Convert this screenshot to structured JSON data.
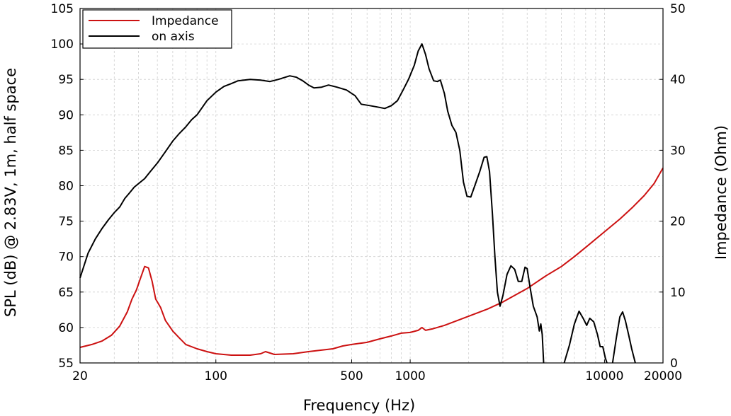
{
  "chart_data": {
    "type": "line",
    "xlabel": "Frequency (Hz)",
    "ylabel_left": "SPL (dB) @ 2.83V, 1m, half space",
    "ylabel_right": "Impedance (Ohm)",
    "x_scale": "log",
    "xlim": [
      20,
      20000
    ],
    "ylim_left": [
      55,
      105
    ],
    "ylim_right": [
      0,
      50
    ],
    "grid": true,
    "legend_position": "top-left",
    "x_ticks": [
      {
        "value": 20,
        "label": "20"
      },
      {
        "value": 100,
        "label": "100"
      },
      {
        "value": 500,
        "label": "500"
      },
      {
        "value": 1000,
        "label": "1000"
      },
      {
        "value": 10000,
        "label": "10000"
      },
      {
        "value": 20000,
        "label": "20000"
      }
    ],
    "y_ticks_left": [
      55,
      60,
      65,
      70,
      75,
      80,
      85,
      90,
      95,
      100,
      105
    ],
    "y_ticks_right": [
      0,
      10,
      20,
      30,
      40,
      50
    ],
    "series": [
      {
        "name": "Impedance",
        "axis": "right",
        "color": "#cc1111",
        "points": [
          [
            20,
            2.2
          ],
          [
            23,
            2.6
          ],
          [
            26,
            3.1
          ],
          [
            29,
            3.9
          ],
          [
            32,
            5.2
          ],
          [
            35,
            7.2
          ],
          [
            37,
            9.0
          ],
          [
            39,
            10.3
          ],
          [
            41,
            12.0
          ],
          [
            43,
            13.6
          ],
          [
            45,
            13.4
          ],
          [
            47,
            11.5
          ],
          [
            49,
            9.0
          ],
          [
            52,
            7.8
          ],
          [
            55,
            6.0
          ],
          [
            60,
            4.5
          ],
          [
            65,
            3.5
          ],
          [
            70,
            2.6
          ],
          [
            80,
            2.0
          ],
          [
            90,
            1.6
          ],
          [
            100,
            1.3
          ],
          [
            120,
            1.1
          ],
          [
            150,
            1.1
          ],
          [
            170,
            1.3
          ],
          [
            180,
            1.6
          ],
          [
            190,
            1.4
          ],
          [
            200,
            1.2
          ],
          [
            250,
            1.3
          ],
          [
            300,
            1.6
          ],
          [
            400,
            2.0
          ],
          [
            450,
            2.4
          ],
          [
            500,
            2.6
          ],
          [
            600,
            2.9
          ],
          [
            700,
            3.4
          ],
          [
            800,
            3.8
          ],
          [
            900,
            4.2
          ],
          [
            1000,
            4.3
          ],
          [
            1100,
            4.6
          ],
          [
            1150,
            5.0
          ],
          [
            1200,
            4.6
          ],
          [
            1300,
            4.8
          ],
          [
            1500,
            5.3
          ],
          [
            2000,
            6.6
          ],
          [
            2500,
            7.6
          ],
          [
            3000,
            8.6
          ],
          [
            4000,
            10.5
          ],
          [
            5000,
            12.3
          ],
          [
            6000,
            13.6
          ],
          [
            7000,
            15.0
          ],
          [
            8000,
            16.3
          ],
          [
            10000,
            18.5
          ],
          [
            12000,
            20.3
          ],
          [
            14000,
            22.0
          ],
          [
            16000,
            23.6
          ],
          [
            18000,
            25.3
          ],
          [
            20000,
            27.5
          ]
        ]
      },
      {
        "name": "on axis",
        "axis": "left",
        "color": "#000000",
        "points": [
          [
            20,
            67.0
          ],
          [
            22,
            70.5
          ],
          [
            24,
            72.5
          ],
          [
            26,
            74.0
          ],
          [
            28,
            75.2
          ],
          [
            30,
            76.2
          ],
          [
            32,
            77.0
          ],
          [
            34,
            78.2
          ],
          [
            36,
            79.0
          ],
          [
            38,
            79.8
          ],
          [
            40,
            80.3
          ],
          [
            43,
            81.0
          ],
          [
            46,
            82.0
          ],
          [
            50,
            83.2
          ],
          [
            55,
            84.8
          ],
          [
            60,
            86.3
          ],
          [
            65,
            87.4
          ],
          [
            70,
            88.3
          ],
          [
            75,
            89.3
          ],
          [
            80,
            90.0
          ],
          [
            90,
            92.0
          ],
          [
            100,
            93.2
          ],
          [
            110,
            94.0
          ],
          [
            120,
            94.4
          ],
          [
            130,
            94.8
          ],
          [
            150,
            95.0
          ],
          [
            170,
            94.9
          ],
          [
            190,
            94.7
          ],
          [
            210,
            95.0
          ],
          [
            240,
            95.5
          ],
          [
            260,
            95.3
          ],
          [
            280,
            94.8
          ],
          [
            300,
            94.2
          ],
          [
            320,
            93.8
          ],
          [
            350,
            93.9
          ],
          [
            380,
            94.2
          ],
          [
            420,
            93.9
          ],
          [
            470,
            93.5
          ],
          [
            520,
            92.7
          ],
          [
            560,
            91.5
          ],
          [
            620,
            91.3
          ],
          [
            680,
            91.1
          ],
          [
            740,
            90.9
          ],
          [
            800,
            91.3
          ],
          [
            860,
            92.0
          ],
          [
            920,
            93.5
          ],
          [
            980,
            95.0
          ],
          [
            1050,
            97.0
          ],
          [
            1100,
            99.0
          ],
          [
            1150,
            100.0
          ],
          [
            1200,
            98.5
          ],
          [
            1250,
            96.5
          ],
          [
            1320,
            94.8
          ],
          [
            1380,
            94.7
          ],
          [
            1430,
            94.9
          ],
          [
            1500,
            93.0
          ],
          [
            1560,
            90.5
          ],
          [
            1640,
            88.5
          ],
          [
            1720,
            87.5
          ],
          [
            1800,
            85.0
          ],
          [
            1880,
            80.5
          ],
          [
            1960,
            78.5
          ],
          [
            2050,
            78.4
          ],
          [
            2150,
            80.0
          ],
          [
            2280,
            82.0
          ],
          [
            2400,
            84.0
          ],
          [
            2480,
            84.1
          ],
          [
            2560,
            82.0
          ],
          [
            2650,
            76.0
          ],
          [
            2730,
            70.0
          ],
          [
            2810,
            65.0
          ],
          [
            2900,
            63.0
          ],
          [
            3000,
            64.5
          ],
          [
            3150,
            67.5
          ],
          [
            3300,
            68.7
          ],
          [
            3450,
            68.2
          ],
          [
            3600,
            66.5
          ],
          [
            3750,
            66.5
          ],
          [
            3900,
            68.5
          ],
          [
            4000,
            68.3
          ],
          [
            4150,
            65.5
          ],
          [
            4300,
            63.0
          ],
          [
            4500,
            61.5
          ],
          [
            4620,
            59.5
          ],
          [
            4700,
            60.5
          ],
          [
            4780,
            59.0
          ],
          [
            4860,
            55.0
          ]
        ]
      },
      {
        "name": "",
        "axis": "left",
        "color": "#000000",
        "points": [
          [
            6200,
            55.0
          ],
          [
            6600,
            57.5
          ],
          [
            7000,
            60.5
          ],
          [
            7400,
            62.3
          ],
          [
            7800,
            61.2
          ],
          [
            8100,
            60.3
          ],
          [
            8400,
            61.3
          ],
          [
            8800,
            60.8
          ],
          [
            9200,
            59.0
          ],
          [
            9500,
            57.3
          ],
          [
            9800,
            57.3
          ],
          [
            10100,
            55.7
          ],
          [
            10300,
            55.0
          ]
        ]
      },
      {
        "name": "",
        "axis": "left",
        "color": "#000000",
        "points": [
          [
            11000,
            55.0
          ],
          [
            11500,
            58.5
          ],
          [
            12000,
            61.5
          ],
          [
            12400,
            62.2
          ],
          [
            12800,
            61.0
          ],
          [
            13300,
            59.0
          ],
          [
            13800,
            57.0
          ],
          [
            14400,
            55.0
          ]
        ]
      }
    ]
  }
}
